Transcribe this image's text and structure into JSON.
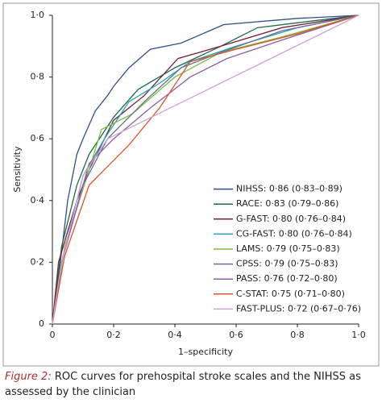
{
  "chart_data": {
    "type": "line",
    "xlabel": "1–specificity",
    "ylabel": "Sensitivity",
    "xlim": [
      0,
      1
    ],
    "ylim": [
      0,
      1
    ],
    "xticks": [
      0,
      {
        "value": 0.2,
        "label": "0·2"
      },
      {
        "value": 0.4,
        "label": "0·4"
      },
      {
        "value": 0.6,
        "label": "0·6"
      },
      {
        "value": 0.8,
        "label": "0·8"
      },
      {
        "value": 1,
        "label": "1·0"
      }
    ],
    "yticks": [
      0,
      {
        "value": 0.2,
        "label": "0·2"
      },
      {
        "value": 0.4,
        "label": "0·4"
      },
      {
        "value": 0.6,
        "label": "0·6"
      },
      {
        "value": 0.8,
        "label": "0·8"
      },
      {
        "value": 1,
        "label": "1·0"
      }
    ],
    "legend": "lower right",
    "series": [
      {
        "name": "NIHSS: 0·86 (0·83–0·89)",
        "color": "#2f4f8f",
        "x": [
          0,
          0.02,
          0.05,
          0.08,
          0.1,
          0.14,
          0.18,
          0.2,
          0.25,
          0.32,
          0.42,
          0.56,
          0.8,
          1
        ],
        "y": [
          0,
          0.15,
          0.4,
          0.55,
          0.6,
          0.69,
          0.74,
          0.77,
          0.83,
          0.89,
          0.91,
          0.97,
          0.99,
          1
        ]
      },
      {
        "name": "RACE: 0·83 (0·79–0·86)",
        "color": "#1a6b4a",
        "x": [
          0,
          0.03,
          0.08,
          0.12,
          0.2,
          0.28,
          0.4,
          0.55,
          0.67,
          1
        ],
        "y": [
          0,
          0.25,
          0.45,
          0.55,
          0.67,
          0.76,
          0.83,
          0.9,
          0.96,
          1
        ]
      },
      {
        "name": "G-FAST: 0·80 (0·76–0·84)",
        "color": "#7a1f3d",
        "x": [
          0,
          0.02,
          0.08,
          0.12,
          0.2,
          0.3,
          0.41,
          0.55,
          0.75,
          1
        ],
        "y": [
          0,
          0.2,
          0.4,
          0.5,
          0.66,
          0.74,
          0.86,
          0.9,
          0.96,
          1
        ]
      },
      {
        "name": "CG-FAST: 0·80 (0·76–0·84)",
        "color": "#1fa3b3",
        "x": [
          0,
          0.03,
          0.1,
          0.17,
          0.25,
          0.35,
          0.45,
          0.6,
          0.8,
          1
        ],
        "y": [
          0,
          0.2,
          0.48,
          0.6,
          0.72,
          0.78,
          0.85,
          0.9,
          0.96,
          1
        ]
      },
      {
        "name": "LAMS: 0·79 (0·75–0·83)",
        "color": "#7bbf3a",
        "x": [
          0,
          0.04,
          0.12,
          0.16,
          0.26,
          0.4,
          0.55,
          0.75,
          1
        ],
        "y": [
          0,
          0.25,
          0.5,
          0.63,
          0.68,
          0.8,
          0.88,
          0.93,
          1
        ]
      },
      {
        "name": "CPSS: 0·79 (0·75–0·83)",
        "color": "#6a6e9a",
        "x": [
          0,
          0.03,
          0.1,
          0.18,
          0.3,
          0.42,
          0.55,
          0.75,
          1
        ],
        "y": [
          0,
          0.2,
          0.45,
          0.6,
          0.72,
          0.83,
          0.88,
          0.95,
          1
        ]
      },
      {
        "name": "PASS: 0·76 (0·72–0·80)",
        "color": "#8b5fa8",
        "x": [
          0,
          0.03,
          0.12,
          0.2,
          0.32,
          0.45,
          0.57,
          0.75,
          1
        ],
        "y": [
          0,
          0.2,
          0.52,
          0.6,
          0.7,
          0.8,
          0.86,
          0.92,
          1
        ]
      },
      {
        "name": "C-STAT: 0·75 (0·71–0·80)",
        "color": "#e0502a",
        "x": [
          0,
          0.04,
          0.12,
          0.25,
          0.35,
          0.45,
          0.6,
          0.8,
          1
        ],
        "y": [
          0,
          0.22,
          0.45,
          0.58,
          0.7,
          0.85,
          0.89,
          0.94,
          1
        ]
      },
      {
        "name": "FAST-PLUS: 0·72 (0·67–0·76)",
        "color": "#c9a6d0",
        "x": [
          0,
          0.03,
          0.1,
          0.18,
          1
        ],
        "y": [
          0,
          0.2,
          0.48,
          0.6,
          1
        ]
      }
    ]
  },
  "caption_label": "Figure 2:",
  "caption": "ROC curves for prehospital stroke scales and the NIHSS as assessed by the clinician"
}
